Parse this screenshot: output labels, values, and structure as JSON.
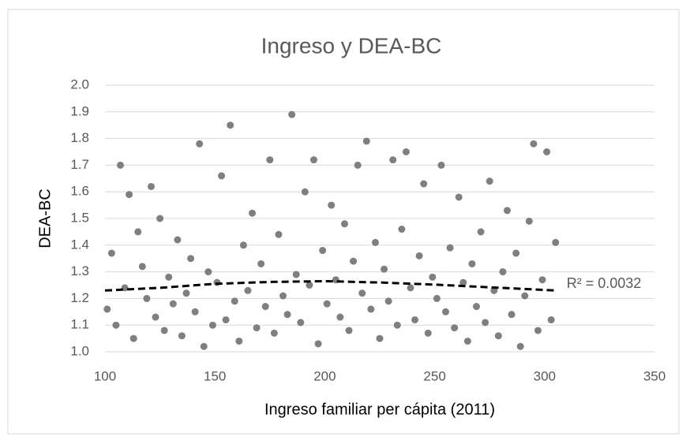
{
  "chart_data": {
    "type": "scatter",
    "title": "Ingreso y DEA-BC",
    "x_label": "Ingreso familiar per cápita (2011)",
    "y_label": "DEA-BC",
    "xlim": [
      100,
      350
    ],
    "xticks": [
      100,
      150,
      200,
      250,
      300,
      350
    ],
    "ylim": [
      1.0,
      2.0
    ],
    "yticks": [
      {
        "value": 1.0,
        "label": "1.0"
      },
      1.1,
      1.2,
      1.3,
      1.4,
      1.5,
      1.6,
      1.7,
      1.8,
      1.9,
      {
        "value": 2.0,
        "label": "2.0"
      }
    ],
    "grid": true,
    "series": [
      {
        "color": "#7f7f7f",
        "x": [
          101,
          103,
          105,
          107,
          109,
          111,
          113,
          115,
          117,
          119,
          121,
          123,
          125,
          127,
          129,
          131,
          133,
          135,
          137,
          139,
          141,
          143,
          145,
          147,
          149,
          151,
          153,
          155,
          157,
          159,
          161,
          163,
          165,
          167,
          169,
          171,
          173,
          175,
          177,
          179,
          181,
          183,
          185,
          187,
          189,
          191,
          193,
          195,
          197,
          199,
          201,
          203,
          205,
          207,
          209,
          211,
          213,
          215,
          217,
          219,
          221,
          223,
          225,
          227,
          229,
          231,
          233,
          235,
          237,
          239,
          241,
          243,
          245,
          247,
          249,
          251,
          253,
          255,
          257,
          259,
          261,
          263,
          265,
          267,
          269,
          271,
          273,
          275,
          277,
          279,
          281,
          283,
          285,
          287,
          289,
          291,
          293,
          295,
          297,
          299,
          301,
          303,
          305
        ],
        "values": [
          1.16,
          1.37,
          1.1,
          1.7,
          1.24,
          1.59,
          1.05,
          1.45,
          1.32,
          1.2,
          1.62,
          1.13,
          1.5,
          1.08,
          1.28,
          1.18,
          1.42,
          1.06,
          1.22,
          1.35,
          1.15,
          1.78,
          1.02,
          1.3,
          1.1,
          1.26,
          1.66,
          1.12,
          1.85,
          1.19,
          1.04,
          1.4,
          1.23,
          1.52,
          1.09,
          1.33,
          1.17,
          1.72,
          1.07,
          1.44,
          1.21,
          1.14,
          1.89,
          1.29,
          1.11,
          1.6,
          1.25,
          1.72,
          1.03,
          1.38,
          1.18,
          1.55,
          1.27,
          1.13,
          1.48,
          1.08,
          1.34,
          1.7,
          1.22,
          1.79,
          1.16,
          1.41,
          1.05,
          1.31,
          1.19,
          1.72,
          1.1,
          1.46,
          1.75,
          1.24,
          1.12,
          1.36,
          1.63,
          1.07,
          1.28,
          1.2,
          1.7,
          1.15,
          1.39,
          1.09,
          1.58,
          1.26,
          1.04,
          1.33,
          1.17,
          1.45,
          1.11,
          1.64,
          1.23,
          1.06,
          1.3,
          1.53,
          1.14,
          1.37,
          1.02,
          1.21,
          1.49,
          1.78,
          1.08,
          1.27,
          1.75,
          1.12,
          1.41
        ]
      }
    ],
    "trendline": {
      "color": "#000000",
      "x": [
        100,
        125,
        150,
        175,
        200,
        225,
        250,
        275,
        305
      ],
      "values": [
        1.23,
        1.24,
        1.255,
        1.262,
        1.265,
        1.26,
        1.252,
        1.242,
        1.23
      ],
      "label": "R² = 0.0032"
    }
  }
}
